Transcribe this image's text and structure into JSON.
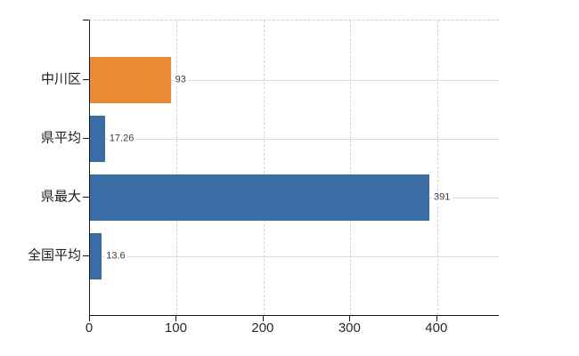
{
  "chart_data": {
    "type": "bar",
    "orientation": "horizontal",
    "title": "",
    "xlabel": "",
    "ylabel": "",
    "categories": [
      "中川区",
      "県平均",
      "県最大",
      "全国平均"
    ],
    "values": [
      93,
      17.26,
      391,
      13.6
    ],
    "value_labels": [
      "93",
      "17.26",
      "391",
      "13.6"
    ],
    "bar_colors": [
      "#EC8A33",
      "#3A6DA6",
      "#3A6DA6",
      "#3A6DA6"
    ],
    "xlim": [
      0,
      471
    ],
    "xticks": [
      0,
      100,
      200,
      300,
      400
    ],
    "xtick_labels": [
      "0",
      "100",
      "200",
      "300",
      "400"
    ],
    "grid": true,
    "legend": null,
    "styles": {
      "grid_color": "#dcdcdc",
      "vgrid_color": "#d4d4d4",
      "axis_color": "#161616",
      "category_label_color": "#1e1e1e",
      "value_label_color": "#3d3d3d",
      "background": "#ffffff"
    }
  }
}
